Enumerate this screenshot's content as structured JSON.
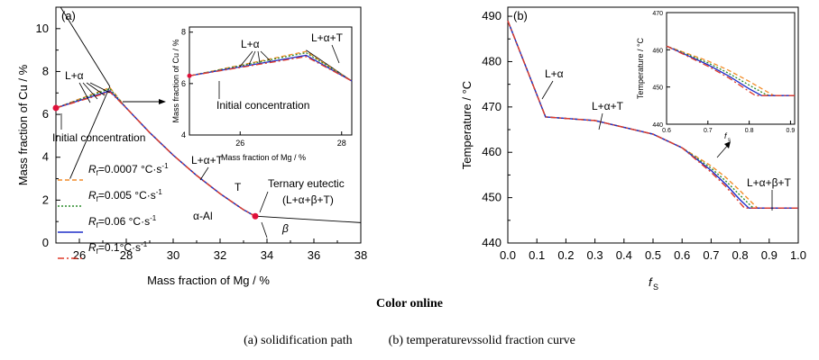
{
  "panel_a": {
    "tag": "(a)",
    "xlabel": "Mass fraction of Mg / %",
    "ylabel": "Mass fraction of Cu / %",
    "xticks": [
      "26",
      "28",
      "30",
      "32",
      "34",
      "36",
      "38"
    ],
    "yticks": [
      "0",
      "2",
      "4",
      "6",
      "8",
      "10"
    ],
    "legend": [
      {
        "prefix": "R",
        "sub": "f",
        "value": "=0.0007 °C·s",
        "sup": "-1",
        "color": "#f28c28",
        "dash": "5,3"
      },
      {
        "prefix": "R",
        "sub": "f",
        "value": "=0.005 °C·s",
        "sup": "-1",
        "color": "#2a8a2a",
        "dash": "2,2"
      },
      {
        "prefix": "R",
        "sub": "f",
        "value": "=0.06 °C·s",
        "sup": "-1",
        "color": "#1f2ec9",
        "dash": ""
      },
      {
        "prefix": "R",
        "sub": "f",
        "value": "=0.1°C·s",
        "sup": "-1",
        "color": "#e03a2a",
        "dash": "7,3,2,3"
      }
    ],
    "annotations": {
      "l_alpha": "L+α",
      "initial": "Initial concentration",
      "l_alpha_t": "L+α+T",
      "t": "T",
      "alpha_al": "α-Al",
      "beta": "β",
      "ternary_1": "Ternary eutectic",
      "ternary_2": "(L+α+β+T)"
    },
    "inset": {
      "xlabel": "Mass fraction of Mg / %",
      "ylabel": "Mass fraction of Cu / %",
      "xticks": [
        "26",
        "28"
      ],
      "yticks": [
        "4",
        "6",
        "8"
      ],
      "l_alpha": "L+α",
      "l_alpha_t": "L+α+T",
      "initial": "Initial concentration"
    }
  },
  "panel_b": {
    "tag": "(b)",
    "xlabel": "f",
    "xlabel_sub": "S",
    "ylabel": "Temperature / °C",
    "xticks": [
      "0.0",
      "0.1",
      "0.2",
      "0.3",
      "0.4",
      "0.5",
      "0.6",
      "0.7",
      "0.8",
      "0.9",
      "1.0"
    ],
    "yticks": [
      "440",
      "450",
      "460",
      "470",
      "480",
      "490"
    ],
    "annotations": {
      "l_alpha": "L+α",
      "l_alpha_t": "L+α+T",
      "l_alpha_beta_t": "L+α+β+T",
      "fs": "f",
      "fs_sub": "s"
    },
    "inset": {
      "ylabel": "Temperature / °C",
      "xticks": [
        "0.6",
        "0.7",
        "0.8",
        "0.9"
      ],
      "yticks": [
        "440",
        "450",
        "460",
        "470"
      ]
    }
  },
  "captions": {
    "color_online": "Color online",
    "a_caption": "(a) solidification path",
    "b_caption_pre": "(b) temperature ",
    "b_caption_vs": "vs",
    "b_caption_post": " solid fraction curve"
  },
  "colors": {
    "rf_0_0007": "#f28c28",
    "rf_0_005": "#2a8a2a",
    "rf_0_06": "#1f2ec9",
    "rf_0_1": "#e03a2a",
    "eutectic_point": "#e0103a"
  },
  "chart_data": [
    {
      "type": "line",
      "panel": "a",
      "xlabel": "Mass fraction of Mg / %",
      "ylabel": "Mass fraction of Cu / %",
      "xlim": [
        25,
        38
      ],
      "ylim": [
        0,
        11
      ],
      "series": [
        {
          "name": "Rf=0.0007 °C·s-1",
          "x": [
            25.0,
            27.3,
            28.0,
            29.0,
            30.0,
            31.0,
            32.0,
            33.0,
            33.5
          ],
          "y": [
            6.3,
            7.25,
            6.3,
            5.15,
            4.1,
            3.15,
            2.3,
            1.55,
            1.25
          ]
        },
        {
          "name": "Rf=0.005 °C·s-1",
          "x": [
            25.0,
            27.3,
            28.0,
            29.0,
            30.0,
            31.0,
            32.0,
            33.0,
            33.5
          ],
          "y": [
            6.3,
            7.2,
            6.3,
            5.15,
            4.1,
            3.15,
            2.3,
            1.55,
            1.25
          ]
        },
        {
          "name": "Rf=0.06 °C·s-1",
          "x": [
            25.0,
            27.3,
            28.0,
            29.0,
            30.0,
            31.0,
            32.0,
            33.0,
            33.5
          ],
          "y": [
            6.3,
            7.1,
            6.3,
            5.15,
            4.1,
            3.15,
            2.3,
            1.55,
            1.25
          ]
        },
        {
          "name": "Rf=0.1°C·s-1",
          "x": [
            25.0,
            27.3,
            28.0,
            29.0,
            30.0,
            31.0,
            32.0,
            33.0,
            33.5
          ],
          "y": [
            6.3,
            7.05,
            6.3,
            5.15,
            4.1,
            3.15,
            2.3,
            1.55,
            1.25
          ]
        }
      ],
      "boundaries": [
        {
          "x": [
            25.2,
            27.3
          ],
          "y": [
            11.0,
            7.3
          ]
        },
        {
          "x": [
            27.3,
            25.6
          ],
          "y": [
            7.3,
            3.0
          ]
        },
        {
          "x": [
            33.5,
            38.0
          ],
          "y": [
            1.25,
            0.95
          ]
        }
      ],
      "points": [
        {
          "x": 25.0,
          "y": 6.3
        },
        {
          "x": 33.5,
          "y": 1.25
        }
      ]
    },
    {
      "type": "line",
      "panel": "b",
      "xlabel": "fS",
      "ylabel": "Temperature / °C",
      "xlim": [
        0.0,
        1.0
      ],
      "ylim": [
        440,
        492
      ],
      "series": [
        {
          "name": "Rf=0.0007 °C·s-1",
          "x": [
            0.0,
            0.13,
            0.3,
            0.5,
            0.6,
            0.7,
            0.75,
            0.8,
            0.85,
            0.86,
            1.0
          ],
          "y": [
            489,
            467.8,
            467.0,
            464.0,
            461.0,
            457.0,
            454.5,
            451.5,
            448.3,
            447.7,
            447.7
          ]
        },
        {
          "name": "Rf=0.005 °C·s-1",
          "x": [
            0.0,
            0.13,
            0.3,
            0.5,
            0.6,
            0.7,
            0.75,
            0.8,
            0.84,
            0.85,
            1.0
          ],
          "y": [
            489,
            467.8,
            467.0,
            464.0,
            461.0,
            456.5,
            453.7,
            450.5,
            448.0,
            447.7,
            447.7
          ]
        },
        {
          "name": "Rf=0.06 °C·s-1",
          "x": [
            0.0,
            0.13,
            0.3,
            0.5,
            0.6,
            0.7,
            0.75,
            0.8,
            0.83,
            1.0
          ],
          "y": [
            489,
            467.8,
            467.0,
            464.0,
            461.0,
            456.0,
            453.0,
            449.5,
            447.7,
            447.7
          ]
        },
        {
          "name": "Rf=0.1°C·s-1",
          "x": [
            0.0,
            0.13,
            0.3,
            0.5,
            0.6,
            0.7,
            0.75,
            0.8,
            0.815,
            1.0
          ],
          "y": [
            489,
            467.8,
            467.0,
            464.0,
            461.0,
            455.6,
            452.5,
            448.8,
            447.7,
            447.7
          ]
        }
      ]
    }
  ]
}
